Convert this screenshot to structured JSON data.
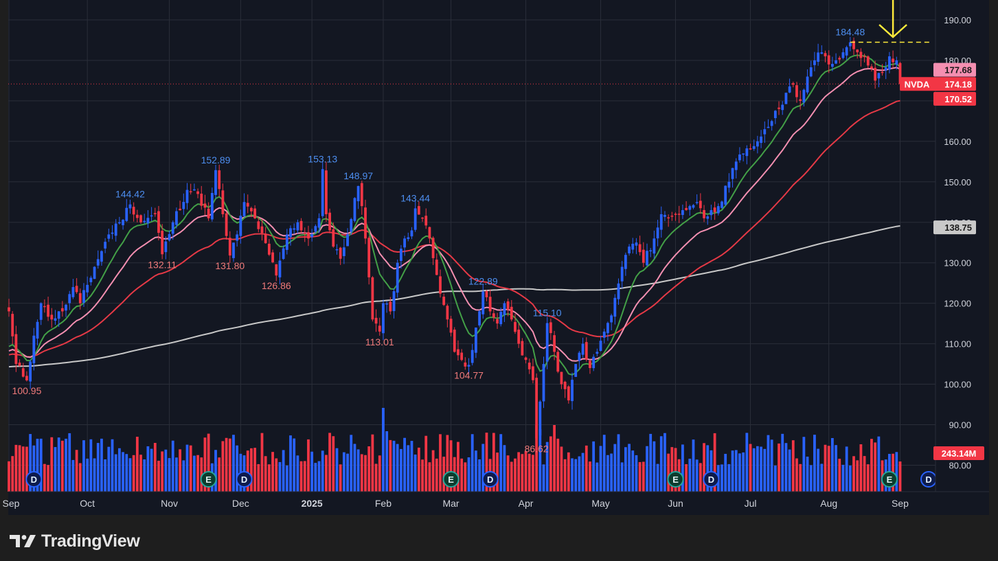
{
  "brand": {
    "name": "TradingView",
    "logo_icon": "tradingview-logo-icon"
  },
  "chart_data": {
    "type": "candlestick",
    "symbol": "NVDA",
    "ylim": [
      75,
      195
    ],
    "y_ticks": [
      "190.00",
      "180.00",
      "170.00",
      "160.00",
      "150.00",
      "140.00",
      "130.00",
      "120.00",
      "110.00",
      "100.00",
      "90.00",
      "80.00"
    ],
    "y_tick_values": [
      190,
      180,
      170,
      160,
      150,
      140,
      130,
      120,
      110,
      100,
      90,
      80
    ],
    "months": [
      {
        "label": "Sep",
        "day": 0
      },
      {
        "label": "Oct",
        "day": 22
      },
      {
        "label": "Nov",
        "day": 45
      },
      {
        "label": "Dec",
        "day": 65
      },
      {
        "label": "2025",
        "day": 85
      },
      {
        "label": "Feb",
        "day": 105
      },
      {
        "label": "Mar",
        "day": 124
      },
      {
        "label": "Apr",
        "day": 145
      },
      {
        "label": "May",
        "day": 166
      },
      {
        "label": "Jun",
        "day": 187
      },
      {
        "label": "Jul",
        "day": 208
      },
      {
        "label": "Aug",
        "day": 230
      },
      {
        "label": "Sep",
        "day": 250
      }
    ],
    "anchors": [
      [
        0,
        118
      ],
      [
        2,
        105
      ],
      [
        5,
        100.95
      ],
      [
        7,
        112
      ],
      [
        9,
        120
      ],
      [
        12,
        116
      ],
      [
        15,
        118
      ],
      [
        18,
        124
      ],
      [
        20,
        120
      ],
      [
        24,
        129
      ],
      [
        28,
        137
      ],
      [
        31,
        140
      ],
      [
        34,
        144.42
      ],
      [
        37,
        140
      ],
      [
        41,
        142
      ],
      [
        43,
        132.11
      ],
      [
        46,
        140
      ],
      [
        50,
        148
      ],
      [
        53,
        147
      ],
      [
        56,
        141
      ],
      [
        58,
        152.89
      ],
      [
        60,
        142
      ],
      [
        62,
        131.8
      ],
      [
        64,
        137
      ],
      [
        66,
        145
      ],
      [
        69,
        141
      ],
      [
        73,
        132
      ],
      [
        75,
        126.86
      ],
      [
        78,
        137
      ],
      [
        81,
        140
      ],
      [
        84,
        136
      ],
      [
        87,
        141
      ],
      [
        88,
        153.13
      ],
      [
        89,
        142
      ],
      [
        91,
        134
      ],
      [
        93,
        131
      ],
      [
        95,
        137
      ],
      [
        97,
        146
      ],
      [
        98,
        148.97
      ],
      [
        99,
        144
      ],
      [
        100,
        136
      ],
      [
        102,
        116
      ],
      [
        104,
        113.01
      ],
      [
        105,
        120
      ],
      [
        107,
        118
      ],
      [
        109,
        130
      ],
      [
        111,
        136
      ],
      [
        113,
        138
      ],
      [
        114,
        143.44
      ],
      [
        116,
        141
      ],
      [
        118,
        136
      ],
      [
        120,
        127
      ],
      [
        123,
        116
      ],
      [
        125,
        108
      ],
      [
        127,
        106
      ],
      [
        129,
        104.77
      ],
      [
        131,
        114
      ],
      [
        133,
        122.89
      ],
      [
        135,
        118
      ],
      [
        137,
        115
      ],
      [
        139,
        120
      ],
      [
        141,
        116
      ],
      [
        143,
        110
      ],
      [
        145,
        106
      ],
      [
        147,
        101
      ],
      [
        148,
        86.62
      ],
      [
        150,
        105
      ],
      [
        151,
        115.1
      ],
      [
        153,
        108
      ],
      [
        155,
        100
      ],
      [
        157,
        96
      ],
      [
        159,
        105
      ],
      [
        161,
        110
      ],
      [
        163,
        104
      ],
      [
        165,
        108
      ],
      [
        167,
        113
      ],
      [
        169,
        117
      ],
      [
        172,
        129
      ],
      [
        174,
        134
      ],
      [
        176,
        135
      ],
      [
        178,
        130
      ],
      [
        181,
        136
      ],
      [
        183,
        142
      ],
      [
        185,
        141
      ],
      [
        187,
        142
      ],
      [
        189,
        143
      ],
      [
        191,
        144
      ],
      [
        193,
        145
      ],
      [
        195,
        141
      ],
      [
        197,
        143
      ],
      [
        199,
        144
      ],
      [
        202,
        150
      ],
      [
        204,
        155
      ],
      [
        206,
        157
      ],
      [
        208,
        158
      ],
      [
        210,
        160
      ],
      [
        212,
        163
      ],
      [
        214,
        165
      ],
      [
        216,
        168
      ],
      [
        218,
        172
      ],
      [
        220,
        174
      ],
      [
        222,
        170
      ],
      [
        224,
        176
      ],
      [
        226,
        180
      ],
      [
        228,
        182
      ],
      [
        230,
        179
      ],
      [
        232,
        180
      ],
      [
        234,
        182
      ],
      [
        236,
        184.48
      ],
      [
        238,
        182
      ],
      [
        240,
        181
      ],
      [
        242,
        178
      ],
      [
        243,
        175
      ],
      [
        245,
        177
      ],
      [
        247,
        181
      ],
      [
        249,
        180
      ],
      [
        250,
        174.18
      ]
    ],
    "volume_spikes": {
      "105": 122,
      "106": 88,
      "148": 97,
      "149": 91,
      "153": 97
    },
    "annotations": {
      "highs": [
        {
          "day": 34,
          "value": "144.42"
        },
        {
          "day": 58,
          "value": "152.89"
        },
        {
          "day": 88,
          "value": "153.13"
        },
        {
          "day": 98,
          "value": "148.97"
        },
        {
          "day": 114,
          "value": "143.44"
        },
        {
          "day": 133,
          "value": "122.89"
        },
        {
          "day": 151,
          "value": "115.10"
        },
        {
          "day": 236,
          "value": "184.48"
        }
      ],
      "lows": [
        {
          "day": 5,
          "value": "100.95"
        },
        {
          "day": 43,
          "value": "132.11"
        },
        {
          "day": 62,
          "value": "131.80"
        },
        {
          "day": 75,
          "value": "126.86"
        },
        {
          "day": 104,
          "value": "113.01"
        },
        {
          "day": 129,
          "value": "104.77"
        },
        {
          "day": 148,
          "value": "86.62"
        }
      ]
    },
    "earnings_markers": [
      "E",
      "E",
      "E",
      "E"
    ],
    "dividend_markers": [
      "D",
      "D",
      "D",
      "D",
      "D"
    ],
    "earnings_days": [
      56,
      124,
      187,
      247
    ],
    "dividend_days": [
      7,
      66,
      135,
      197,
      258
    ],
    "last_price": {
      "symbol": "NVDA",
      "value": "174.18"
    },
    "price_tags": [
      {
        "value": "177.68",
        "price": 177.68,
        "bg": "#f48fb1",
        "fg": "#1a1a1a"
      },
      {
        "value": "170.52",
        "price": 170.52,
        "bg": "#f23645",
        "fg": "#ffffff"
      },
      {
        "value": "138.75",
        "price": 138.75,
        "bg": "#c9c9c9",
        "fg": "#1a1a1a"
      }
    ],
    "volume_tag": "243.14M",
    "resistance_level": 184.48,
    "colors": {
      "up": "#2962ff",
      "down": "#f23645",
      "ma_green": "#43a047",
      "ma_pink": "#f48fb1",
      "ma_red": "#e53946",
      "ma_gray": "#c8c8c8",
      "annotation_high": "#4d8ef0",
      "annotation_low": "#f07a7a",
      "arrow": "#ffeb3b",
      "axis_text": "#d1d4dc",
      "grid": "#2a2e39",
      "background": "#131722"
    }
  }
}
